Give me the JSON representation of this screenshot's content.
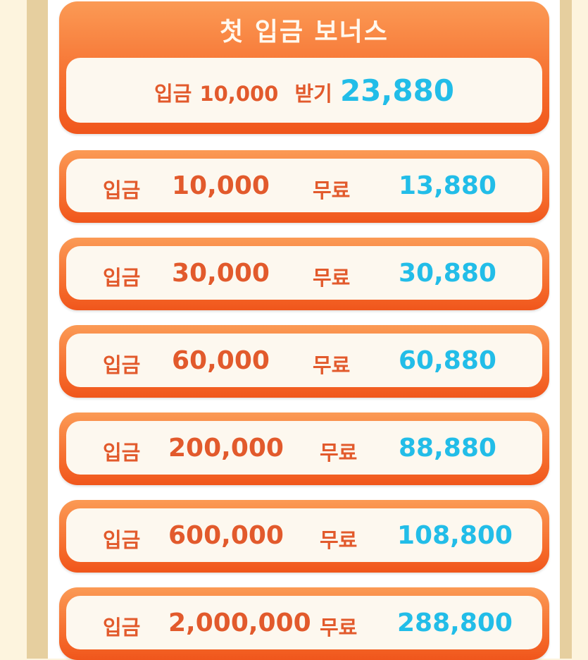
{
  "header": {
    "title": "첫 입금 보너스",
    "first_label": "입금",
    "first_amount": "10,000",
    "receive_label": "받기",
    "receive_amount": "23,880"
  },
  "rows": [
    {
      "label": "입금",
      "amount": "10,000",
      "free_label": "무료",
      "bonus": "13,880"
    },
    {
      "label": "입금",
      "amount": "30,000",
      "free_label": "무료",
      "bonus": "30,880"
    },
    {
      "label": "입금",
      "amount": "60,000",
      "free_label": "무료",
      "bonus": "60,880"
    },
    {
      "label": "입금",
      "amount": "200,000",
      "free_label": "무료",
      "bonus": "88,880"
    },
    {
      "label": "입금",
      "amount": "600,000",
      "free_label": "무료",
      "bonus": "108,800"
    },
    {
      "label": "입금",
      "amount": "2,000,000",
      "free_label": "무료",
      "bonus": "288,800"
    }
  ],
  "colors": {
    "orange": "#f5692a",
    "text_orange": "#e25a2c",
    "blue": "#22bde8",
    "cream": "#fdf8ef"
  }
}
